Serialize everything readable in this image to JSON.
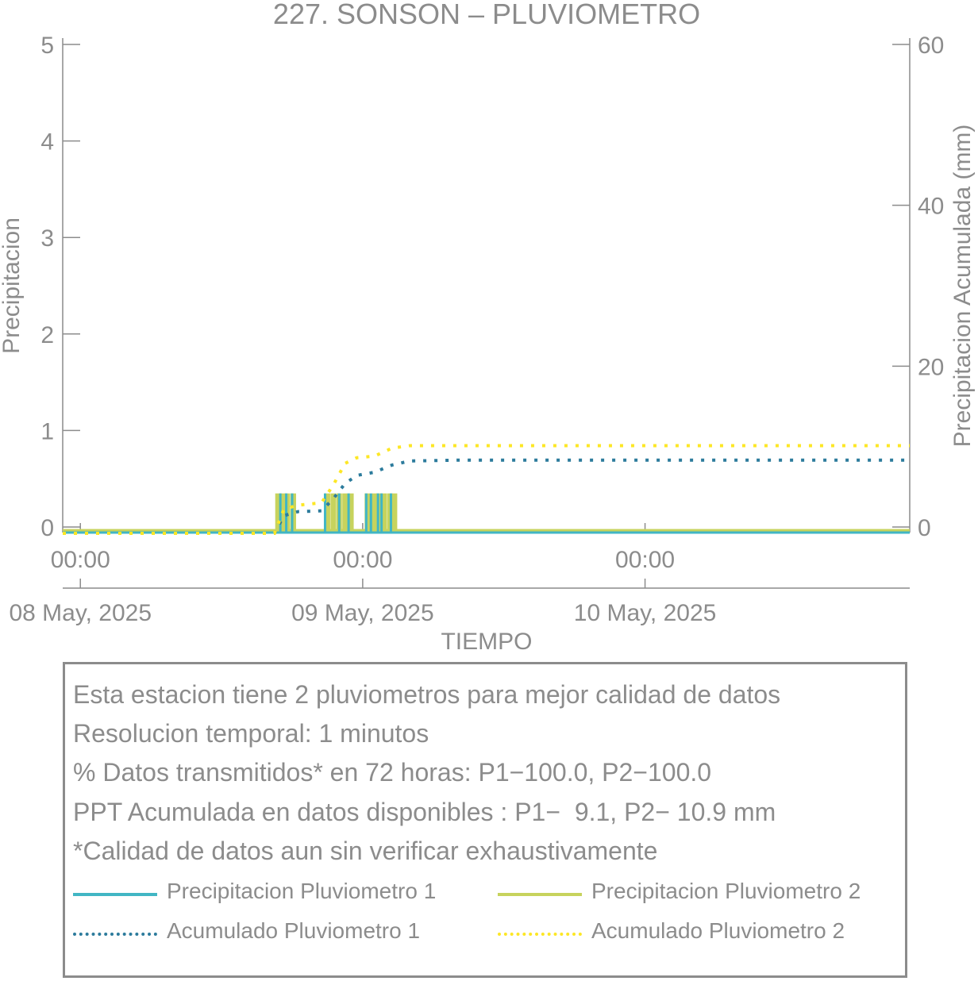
{
  "chart_data": {
    "type": "bar",
    "title": "227. SONSON – PLUVIOMETRO",
    "xlabel": "TIEMPO",
    "ylabel": "Precipitacion",
    "y2label": "Precipitacion Acumulada (mm)",
    "ylim": [
      0,
      5
    ],
    "y2lim": [
      0,
      60
    ],
    "yticks": [
      "0",
      "1",
      "2",
      "3",
      "4",
      "5"
    ],
    "y2ticks": [
      "0",
      "20",
      "40",
      "60"
    ],
    "x_ticks": [
      {
        "hour": "00:00",
        "date": "08 May, 2025"
      },
      {
        "hour": "00:00",
        "date": "09 May, 2025"
      },
      {
        "hour": "00:00",
        "date": "10 May, 2025"
      }
    ],
    "xlim_hours": [
      -1.5,
      70.5
    ],
    "grid": false,
    "series": [
      {
        "name": "Precipitacion Pluviometro 1",
        "kind": "bar",
        "axis": "left",
        "color": "#41b6c4",
        "points": [
          [
            17.0,
            0.2
          ],
          [
            17.5,
            0.2
          ],
          [
            18.0,
            0.2
          ],
          [
            20.8,
            0.2
          ],
          [
            22.0,
            0.2
          ],
          [
            22.8,
            0.2
          ],
          [
            24.3,
            0.2
          ],
          [
            24.7,
            0.2
          ],
          [
            25.3,
            0.2
          ],
          [
            25.6,
            0.2
          ],
          [
            26.4,
            0.2
          ]
        ]
      },
      {
        "name": "Precipitacion Pluviometro 2",
        "kind": "bar",
        "axis": "left",
        "color": "#c7d35d",
        "points": [
          [
            16.8,
            0.2
          ],
          [
            17.2,
            0.2
          ],
          [
            17.6,
            0.2
          ],
          [
            18.1,
            0.2
          ],
          [
            21.0,
            0.2
          ],
          [
            21.5,
            0.2
          ],
          [
            22.0,
            0.2
          ],
          [
            22.5,
            0.2
          ],
          [
            23.0,
            0.2
          ],
          [
            24.4,
            0.2
          ],
          [
            25.0,
            0.2
          ],
          [
            25.4,
            0.2
          ],
          [
            25.8,
            0.2
          ],
          [
            26.3,
            0.2
          ],
          [
            26.7,
            0.2
          ]
        ]
      },
      {
        "name": "Acumulado Pluviometro 1",
        "kind": "line",
        "axis": "right",
        "color": "#2c7b9c",
        "points": [
          [
            -1.5,
            0
          ],
          [
            16.5,
            0
          ],
          [
            17.3,
            2.2
          ],
          [
            18.5,
            2.7
          ],
          [
            20.5,
            2.8
          ],
          [
            21.5,
            4.3
          ],
          [
            22.5,
            6.2
          ],
          [
            23.5,
            7.2
          ],
          [
            25.0,
            7.6
          ],
          [
            26.5,
            8.5
          ],
          [
            28.0,
            9.0
          ],
          [
            32.0,
            9.1
          ],
          [
            70.5,
            9.1
          ]
        ]
      },
      {
        "name": "Acumulado Pluviometro 2",
        "kind": "line",
        "axis": "right",
        "color": "#fde725",
        "points": [
          [
            -1.5,
            0
          ],
          [
            16.5,
            0
          ],
          [
            17.3,
            3.0
          ],
          [
            18.5,
            3.5
          ],
          [
            20.5,
            3.8
          ],
          [
            21.5,
            6.0
          ],
          [
            22.5,
            8.7
          ],
          [
            23.5,
            9.4
          ],
          [
            25.0,
            9.6
          ],
          [
            26.5,
            10.6
          ],
          [
            28.0,
            10.9
          ],
          [
            70.5,
            10.9
          ]
        ]
      }
    ]
  },
  "info": {
    "lines": [
      "Esta estacion tiene 2 pluviometros para mejor calidad de datos",
      "Resolucion temporal: 1 minutos",
      "% Datos transmitidos* en 72 horas: P1−100.0, P2−100.0",
      "PPT Acumulada en datos disponibles : P1−  9.1, P2− 10.9 mm",
      "*Calidad de datos aun sin verificar exhaustivamente"
    ],
    "legend": [
      {
        "label": "Precipitacion Pluviometro 1",
        "color": "#41b6c4",
        "style": "solid"
      },
      {
        "label": "Precipitacion Pluviometro 2",
        "color": "#c7d35d",
        "style": "solid"
      },
      {
        "label": "Acumulado Pluviometro 1",
        "color": "#2c7b9c",
        "style": "dotted"
      },
      {
        "label": "Acumulado Pluviometro 2",
        "color": "#fde725",
        "style": "dotted"
      }
    ]
  }
}
